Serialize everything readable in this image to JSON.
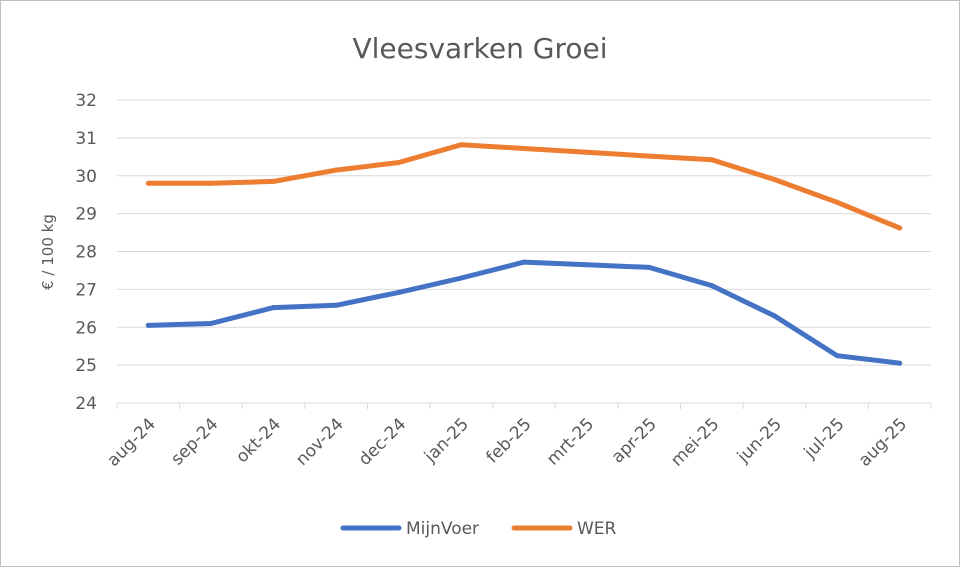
{
  "chart_data": {
    "type": "line",
    "title": "Vleesvarken Groei",
    "xlabel": "",
    "ylabel": "€ / 100 kg",
    "ylim": [
      24,
      32
    ],
    "yticks": [
      "24",
      "25",
      "26",
      "27",
      "28",
      "29",
      "30",
      "31",
      "32"
    ],
    "categories": [
      "aug-24",
      "sep-24",
      "okt-24",
      "nov-24",
      "dec-24",
      "jan-25",
      "feb-25",
      "mrt-25",
      "apr-25",
      "mei-25",
      "jun-25",
      "jul-25",
      "aug-25"
    ],
    "series": [
      {
        "name": "MijnVoer",
        "color": "#4472c4",
        "values": [
          26.05,
          26.1,
          26.52,
          26.58,
          26.92,
          27.3,
          27.72,
          27.65,
          27.58,
          27.1,
          26.3,
          25.25,
          25.05
        ]
      },
      {
        "name": "WER",
        "color": "#ed7d31",
        "values": [
          29.8,
          29.8,
          29.85,
          30.15,
          30.35,
          30.82,
          30.72,
          30.62,
          30.52,
          30.42,
          29.9,
          29.3,
          28.62
        ]
      }
    ],
    "grid": true,
    "legend_position": "bottom"
  }
}
